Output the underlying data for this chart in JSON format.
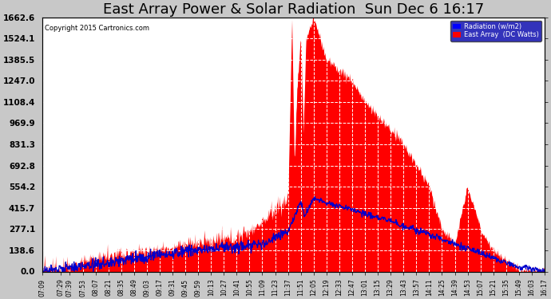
{
  "title": "East Array Power & Solar Radiation  Sun Dec 6 16:17",
  "copyright": "Copyright 2015 Cartronics.com",
  "legend_labels": [
    "Radiation (w/m2)",
    "East Array  (DC Watts)"
  ],
  "legend_colors": [
    "#0000ff",
    "#ff0000"
  ],
  "y_ticks": [
    0.0,
    138.6,
    277.1,
    415.7,
    554.2,
    692.8,
    831.3,
    969.9,
    1108.4,
    1247.0,
    1385.5,
    1524.1,
    1662.6
  ],
  "ymax": 1662.6,
  "background_color": "#c8c8c8",
  "plot_bg_color": "#ffffff",
  "grid_color": "#aaaaaa",
  "red_color": "#ff0000",
  "blue_color": "#0000cc",
  "title_fontsize": 13,
  "x_labels": [
    "07:09",
    "07:29",
    "07:39",
    "07:53",
    "08:07",
    "08:21",
    "08:35",
    "08:49",
    "09:03",
    "09:17",
    "09:31",
    "09:45",
    "09:59",
    "10:13",
    "10:27",
    "10:41",
    "10:55",
    "11:09",
    "11:23",
    "11:37",
    "11:51",
    "12:05",
    "12:19",
    "12:33",
    "12:47",
    "13:01",
    "13:15",
    "13:29",
    "13:43",
    "13:57",
    "14:11",
    "14:25",
    "14:39",
    "14:53",
    "15:07",
    "15:21",
    "15:35",
    "15:49",
    "16:03",
    "16:17"
  ]
}
